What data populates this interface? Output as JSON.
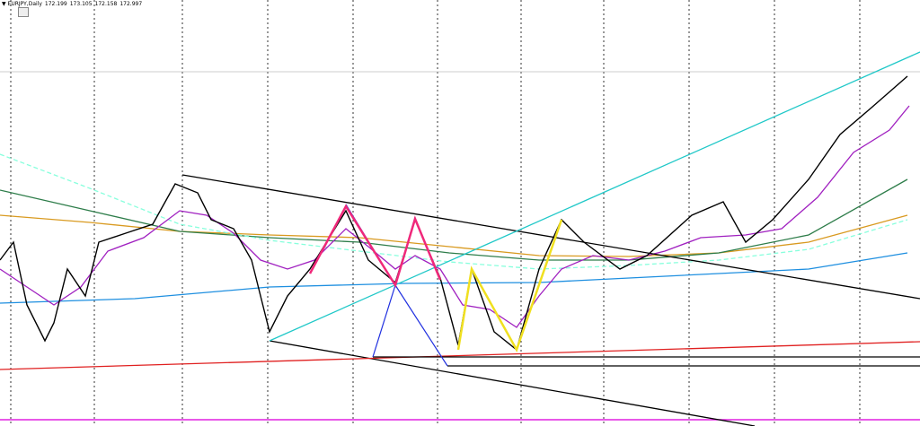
{
  "header": {
    "symbol": "EURJPY,Daily",
    "open": 172.199,
    "high": 173.105,
    "low": 172.158,
    "close": 172.997
  }
}
